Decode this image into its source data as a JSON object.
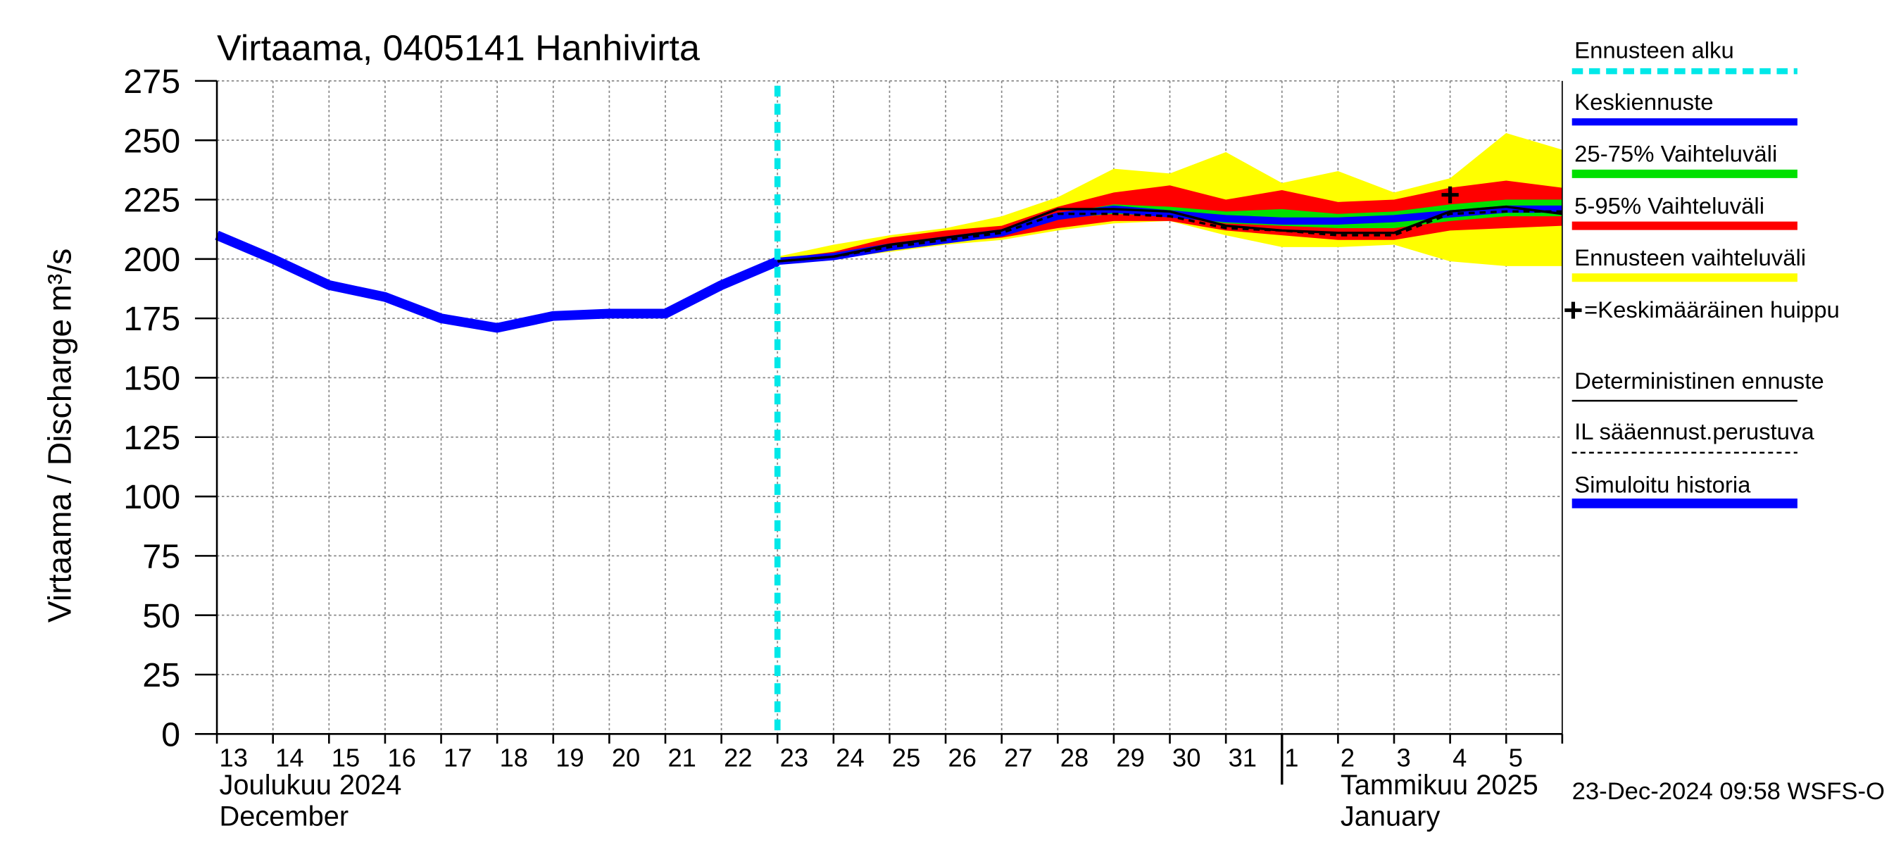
{
  "chart_data": {
    "type": "line",
    "title": "Virtaama, 0405141 Hanhivirta",
    "ylabel": "Virtaama / Discharge",
    "yunit": "m³/s",
    "categories": [
      "13",
      "14",
      "15",
      "16",
      "17",
      "18",
      "19",
      "20",
      "21",
      "22",
      "23",
      "24",
      "25",
      "26",
      "27",
      "28",
      "29",
      "30",
      "31",
      "1",
      "2",
      "3",
      "4",
      "5",
      null
    ],
    "month_labels": [
      {
        "fi": "Joulukuu  2024",
        "en": "December",
        "at": "13"
      },
      {
        "fi": "Tammikuu  2025",
        "en": "January",
        "at": "1"
      }
    ],
    "ylim": [
      0,
      275
    ],
    "yticks": [
      0,
      25,
      50,
      75,
      100,
      125,
      150,
      175,
      200,
      225,
      250,
      275
    ],
    "grid": true,
    "forecast_start": {
      "name": "Ennusteen alku",
      "color": "#00e8e8",
      "at": "23"
    },
    "bands": [
      {
        "name": "Ennusteen vaihteluväli",
        "color": "#ffff00",
        "upper": [
          null,
          null,
          null,
          null,
          null,
          null,
          null,
          null,
          null,
          null,
          201,
          206,
          210,
          213,
          218,
          226,
          238,
          236,
          245,
          232,
          237,
          228,
          234,
          253,
          246
        ],
        "lower": [
          null,
          null,
          null,
          null,
          null,
          null,
          null,
          null,
          null,
          null,
          199,
          200,
          203,
          206,
          208,
          212,
          215,
          216,
          210,
          205,
          205,
          206,
          199,
          197,
          197
        ]
      },
      {
        "name": "5-95% Vaihteluväli",
        "color": "#ff0000",
        "upper": [
          null,
          null,
          null,
          null,
          null,
          null,
          null,
          null,
          null,
          null,
          200,
          203,
          209,
          212,
          214,
          222,
          228,
          231,
          225,
          229,
          224,
          225,
          230,
          233,
          230
        ],
        "lower": [
          null,
          null,
          null,
          null,
          null,
          null,
          null,
          null,
          null,
          null,
          199,
          200,
          204,
          207,
          209,
          213,
          216,
          216,
          212,
          210,
          208,
          208,
          212,
          213,
          214
        ]
      },
      {
        "name": "25-75% Vaihteluväli",
        "color": "#00e000",
        "upper": [
          null,
          null,
          null,
          null,
          null,
          null,
          null,
          null,
          null,
          null,
          200,
          202,
          206,
          209,
          212,
          219,
          223,
          222,
          220,
          221,
          219,
          220,
          223,
          225,
          225
        ],
        "lower": [
          null,
          null,
          null,
          null,
          null,
          null,
          null,
          null,
          null,
          null,
          199,
          201,
          205,
          207,
          210,
          217,
          219,
          218,
          215,
          214,
          213,
          213,
          216,
          218,
          218
        ]
      }
    ],
    "series": [
      {
        "name": "Keskiennuste",
        "color": "#0000ff",
        "width": 6,
        "values": [
          null,
          null,
          null,
          null,
          null,
          null,
          null,
          null,
          null,
          null,
          199,
          201,
          205,
          208,
          211,
          218,
          221,
          219,
          217,
          216,
          216,
          217,
          219,
          221,
          221
        ]
      },
      {
        "name": "Deterministinen ennuste",
        "color": "#000000",
        "width": 2,
        "values": [
          null,
          null,
          null,
          null,
          null,
          null,
          null,
          null,
          null,
          null,
          199,
          201,
          206,
          209,
          212,
          221,
          221,
          220,
          214,
          212,
          211,
          211,
          220,
          222,
          219
        ]
      },
      {
        "name": "IL sääennust.perustuva",
        "color": "#000000",
        "width": 2,
        "dash": true,
        "values": [
          null,
          null,
          null,
          null,
          null,
          null,
          null,
          null,
          null,
          null,
          199,
          201,
          205,
          208,
          211,
          219,
          219,
          218,
          213,
          212,
          210,
          210,
          219,
          220,
          220
        ]
      },
      {
        "name": "Simuloitu historia",
        "color": "#0000ff",
        "width": 8,
        "values": [
          210,
          200,
          189,
          184,
          175,
          171,
          176,
          177,
          177,
          189,
          199,
          null,
          null,
          null,
          null,
          null,
          null,
          null,
          null,
          null,
          null,
          null,
          null,
          null,
          null
        ]
      }
    ],
    "peak": {
      "name": "=Keskimääräinen huippu",
      "color": "#000000",
      "values": [
        null,
        null,
        null,
        null,
        null,
        null,
        null,
        null,
        null,
        null,
        null,
        null,
        null,
        null,
        null,
        null,
        null,
        null,
        null,
        null,
        null,
        null,
        227,
        null,
        null
      ]
    },
    "timestamp": "23-Dec-2024 09:58 WSFS-O"
  }
}
